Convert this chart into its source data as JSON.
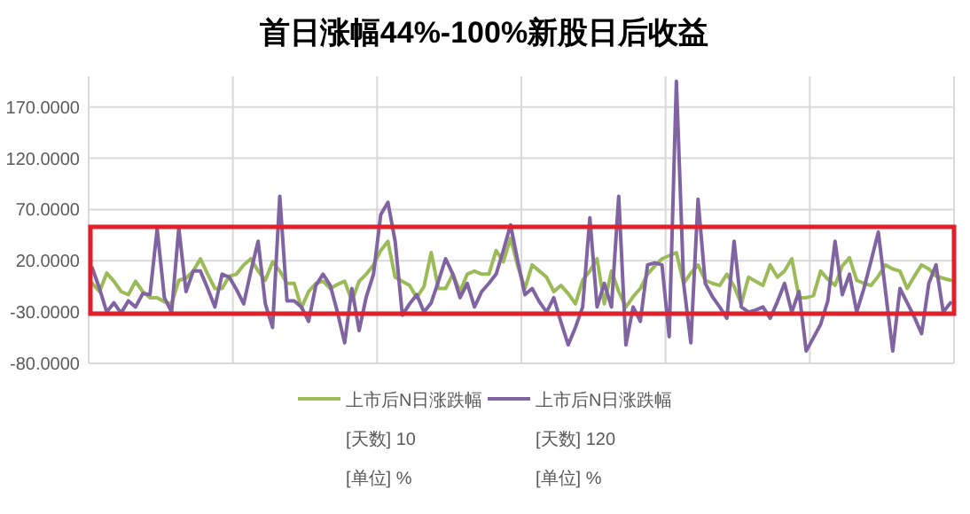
{
  "chart_data": {
    "type": "line",
    "title": "首日涨幅44%-100%新股日后收益",
    "categories": [
      null,
      null,
      null,
      null,
      null,
      null,
      null,
      null,
      null,
      null,
      null,
      null,
      null,
      null,
      null,
      null,
      null,
      null,
      null,
      null,
      null,
      null,
      null,
      null,
      null,
      null,
      null,
      null,
      null,
      null,
      null,
      null,
      null,
      null,
      null,
      null,
      null,
      null,
      null,
      null,
      null,
      null,
      null,
      null,
      null,
      null,
      null,
      null,
      null,
      null,
      null,
      null,
      null,
      null,
      null,
      null,
      null,
      null,
      null,
      null,
      null,
      null,
      null,
      null,
      null,
      null,
      null,
      null,
      null,
      null,
      null,
      null,
      null,
      null,
      null,
      null,
      null,
      null,
      null,
      null,
      null,
      null,
      null,
      null,
      null,
      null,
      null,
      null,
      null,
      null,
      null,
      null,
      null,
      null,
      null,
      null,
      null,
      null,
      null,
      null,
      null,
      null,
      null,
      null,
      null,
      null,
      null,
      null,
      null,
      null,
      null,
      null,
      null,
      null,
      null,
      null,
      null,
      null,
      null,
      null
    ],
    "series": [
      {
        "name": "上市后N日涨跌幅",
        "color": "#9bbb59",
        "values": [
          -2,
          -10,
          8,
          0,
          -10,
          -13,
          0,
          -10,
          -16,
          -16,
          -20,
          -22,
          1,
          3,
          10,
          22,
          7,
          -7,
          -7,
          5,
          7,
          16,
          22,
          10,
          1,
          19,
          10,
          -2,
          -2,
          -26,
          -10,
          -2,
          0,
          -7,
          -3,
          0,
          -19,
          0,
          7,
          16,
          30,
          39,
          4,
          0,
          -4,
          -16,
          -5,
          28,
          -7,
          -7,
          7,
          -10,
          7,
          10,
          7,
          7,
          30,
          19,
          42,
          15,
          -7,
          16,
          10,
          4,
          -10,
          -4,
          -12,
          -22,
          1,
          10,
          22,
          -22,
          10,
          -10,
          -25,
          -15,
          -7,
          7,
          15,
          22,
          25,
          28,
          -2,
          8,
          16,
          1,
          -2,
          -4,
          7,
          -5,
          -22,
          4,
          0,
          -4,
          16,
          4,
          10,
          22,
          -16,
          -16,
          -14,
          10,
          2,
          -4,
          15,
          23,
          1,
          -2,
          -4,
          5,
          16,
          12,
          10,
          -7,
          5,
          16,
          12,
          5,
          3,
          1
        ]
      },
      {
        "name": "上市后N日涨跌幅",
        "color": "#8064a2",
        "values": [
          13,
          -7,
          -30,
          -21,
          -31,
          -19,
          -25,
          -12,
          -13,
          51,
          -16,
          -30,
          52,
          -10,
          10,
          10,
          -7,
          -25,
          7,
          4,
          -8,
          -22,
          10,
          39,
          -22,
          -45,
          83,
          -19,
          -19,
          -25,
          -39,
          -4,
          7,
          -4,
          -30,
          -60,
          -7,
          -48,
          -15,
          7,
          65,
          77,
          39,
          -33,
          -22,
          -13,
          -30,
          -21,
          0,
          22,
          7,
          -16,
          -2,
          -25,
          -10,
          -2,
          7,
          30,
          55,
          20,
          -13,
          -7,
          -20,
          -30,
          -16,
          -40,
          -62,
          -45,
          -25,
          62,
          -25,
          -2,
          -25,
          83,
          -62,
          -25,
          -39,
          16,
          18,
          16,
          -54,
          195,
          -2,
          -60,
          80,
          -2,
          -15,
          -25,
          -36,
          39,
          -25,
          -30,
          -28,
          -25,
          -36,
          -20,
          -2,
          -30,
          -10,
          -68,
          -55,
          -42,
          -19,
          39,
          -13,
          7,
          -30,
          -7,
          20,
          48,
          -10,
          -68,
          -7,
          -21,
          -35,
          -51,
          -2,
          16,
          -30,
          -21
        ]
      }
    ],
    "ylim": [
      -80,
      200
    ],
    "yticks": [
      {
        "value": -80,
        "label": "-80.0000"
      },
      {
        "value": -30,
        "label": "-30.0000"
      },
      {
        "value": 20,
        "label": "20.0000"
      },
      {
        "value": 70,
        "label": "70.0000"
      },
      {
        "value": 120,
        "label": "120.0000"
      },
      {
        "value": 170,
        "label": "170.0000"
      }
    ],
    "grid": true,
    "legend": "bottom",
    "annotations": [
      "[天数] 10",
      "[单位] %",
      "[天数] 120",
      "[单位] %"
    ]
  }
}
